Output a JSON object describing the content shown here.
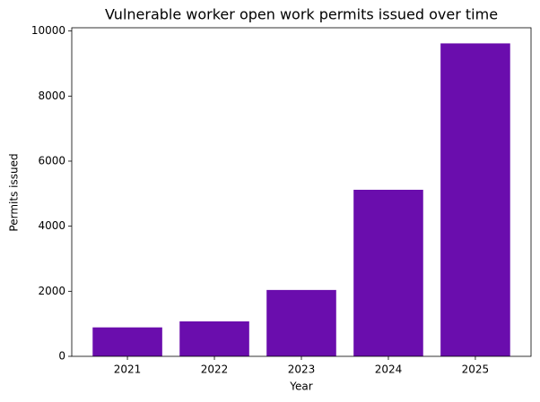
{
  "chart_data": {
    "type": "bar",
    "title": "Vulnerable worker open work permits issued over time",
    "x_label": "Year",
    "y_label": "Permits issued",
    "categories": [
      "2021",
      "2022",
      "2023",
      "2024",
      "2025"
    ],
    "values": [
      890,
      1075,
      2040,
      5120,
      9620
    ],
    "color": "#6a0dad",
    "ylim": [
      0,
      10100
    ],
    "yticks": [
      0,
      2000,
      4000,
      6000,
      8000,
      10000
    ],
    "grid": false
  }
}
